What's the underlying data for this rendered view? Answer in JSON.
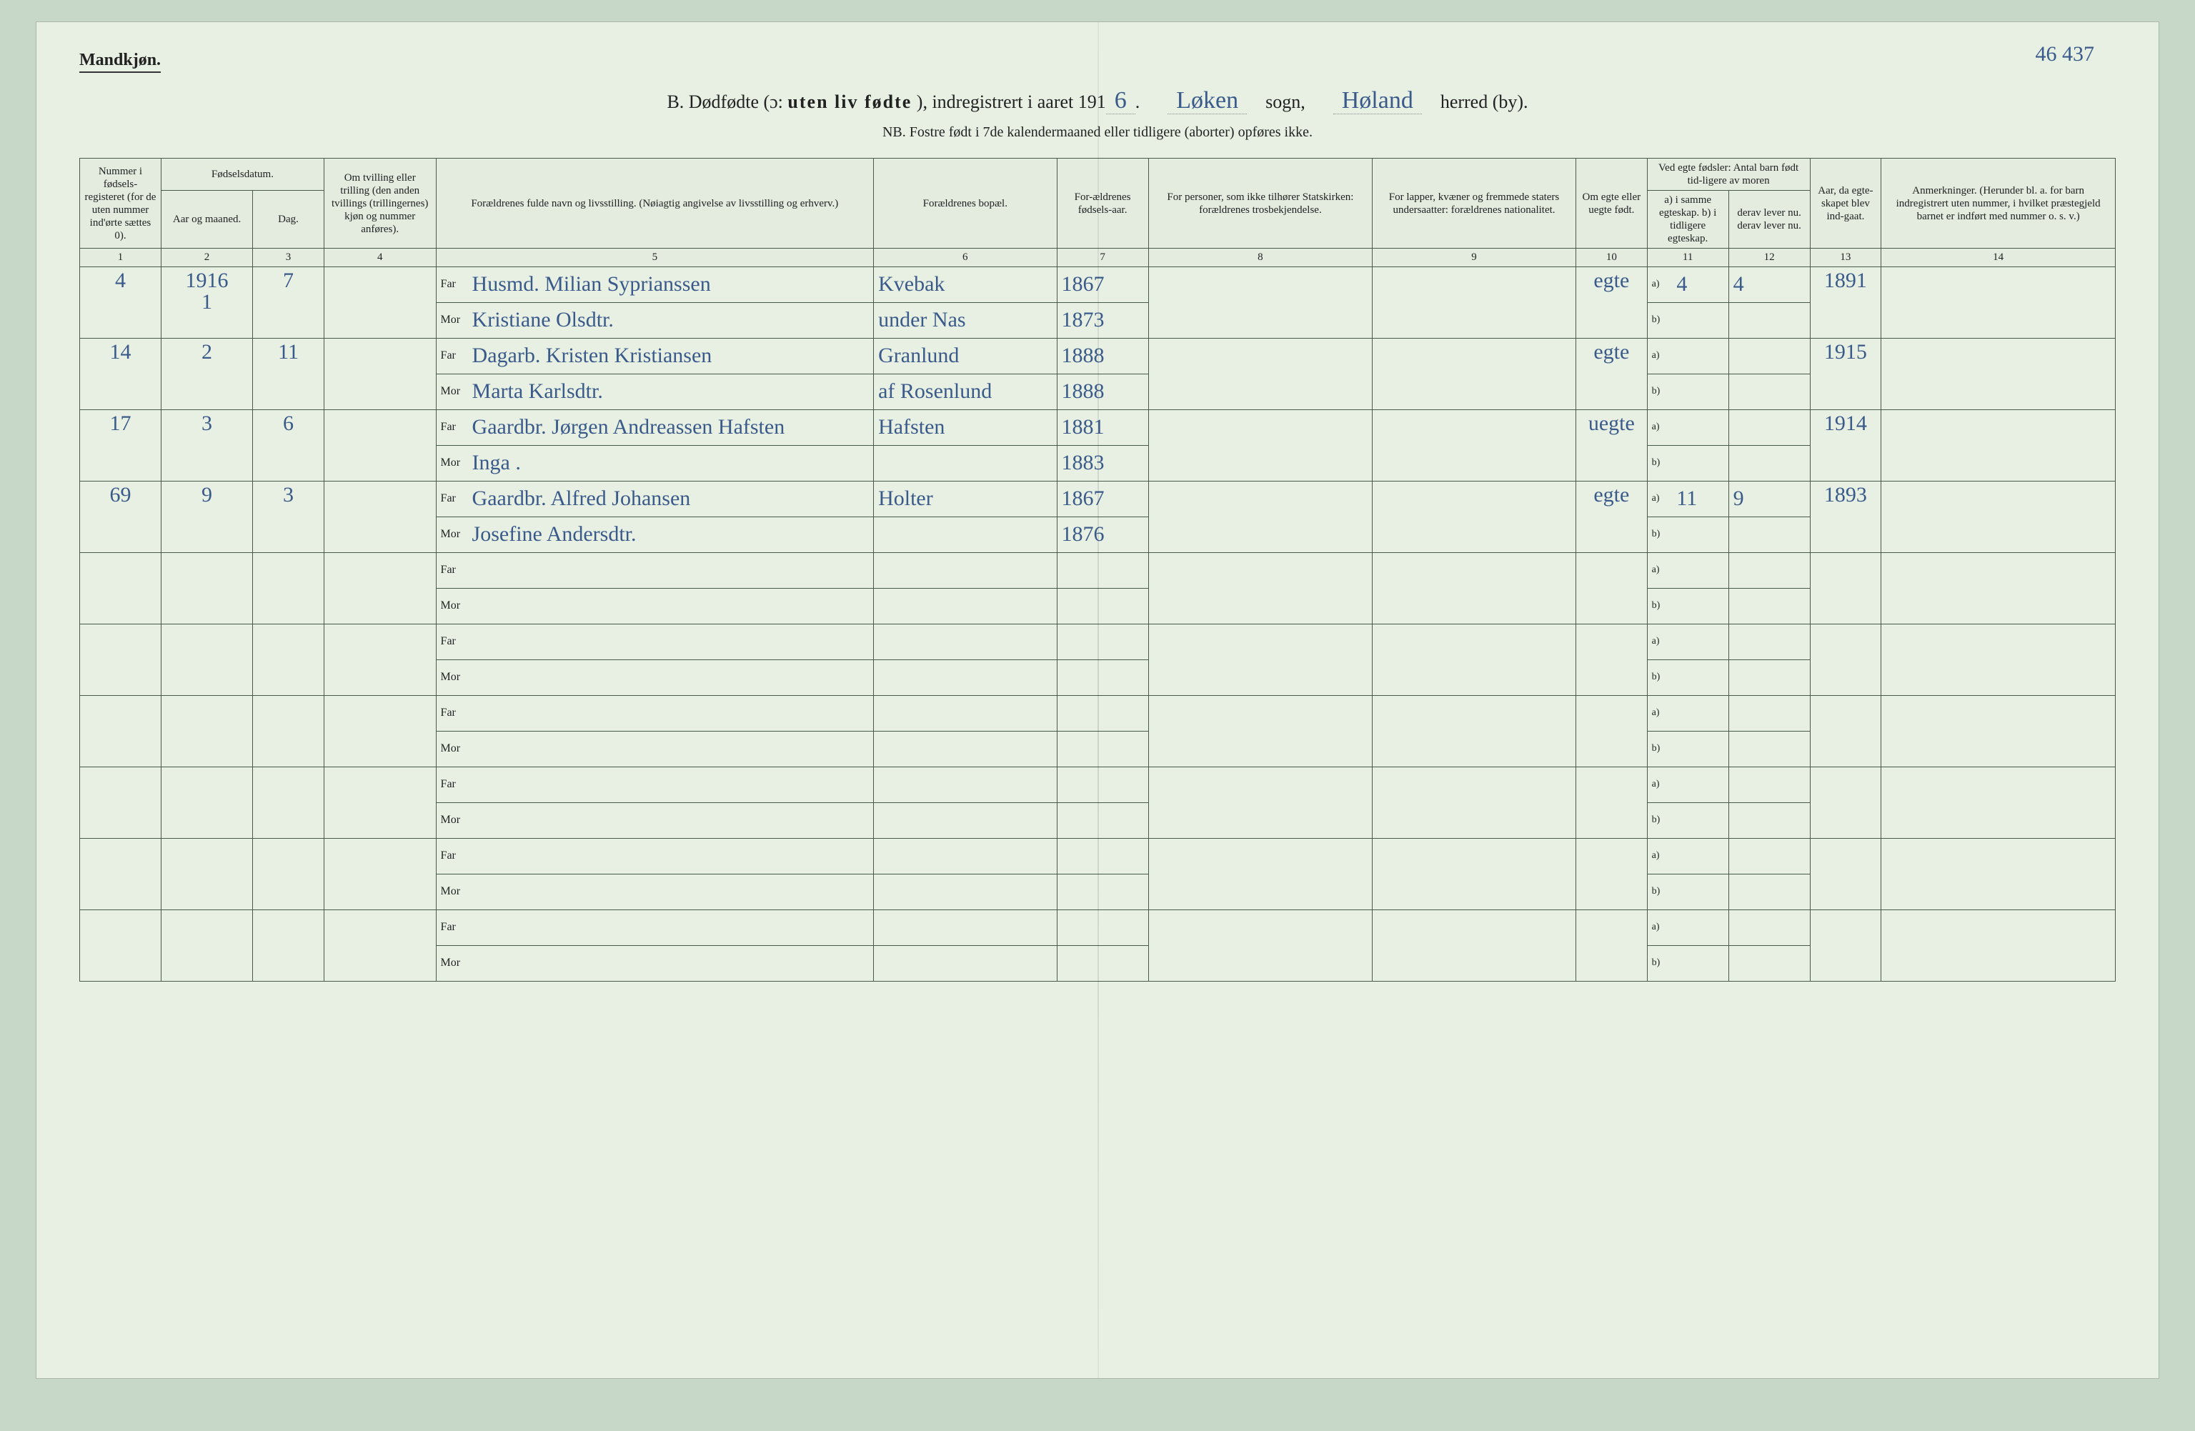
{
  "corner_note": "46 437",
  "gender_label": "Mandkjøn.",
  "title": {
    "prefix": "B.  Dødfødte (ɔ:  ",
    "bold_part": "uten liv fødte",
    "after_bold": "),  indregistrert i aaret 191",
    "year_suffix": "6",
    "sogn_fill": "Løken",
    "sogn_label": "sogn,",
    "herred_fill": "Høland",
    "herred_label": "herred (by)."
  },
  "nb_line": "NB.  Fostre født i 7de kalendermaaned eller tidligere (aborter) opføres ikke.",
  "headers": {
    "c1": "Nummer i fødsels-registeret (for de uten nummer ind'ørte sættes 0).",
    "c2_group": "Fødselsdatum.",
    "c2": "Aar og maaned.",
    "c3": "Dag.",
    "c4": "Om tvilling eller trilling (den anden tvillings (trillingernes) kjøn og nummer anføres).",
    "c5": "Forældrenes fulde navn og livsstilling.\n(Nøiagtig angivelse av livsstilling og erhverv.)",
    "c6": "Forældrenes bopæl.",
    "c7": "For-ældrenes fødsels-aar.",
    "c8": "For personer, som ikke tilhører Statskirken:\nforældrenes trosbekjendelse.",
    "c9": "For lapper, kvæner og fremmede staters undersaatter:\nforældrenes nationalitet.",
    "c10": "Om egte eller uegte født.",
    "c11_12_group": "Ved egte fødsler:\nAntal barn født tid-ligere av moren",
    "c11": "a) i samme egteskap.\nb) i tidligere egteskap.",
    "c12": "derav lever nu.\nderav lever nu.",
    "c13": "Aar, da egte-skapet blev ind-gaat.",
    "c14": "Anmerkninger.\n(Herunder bl. a. for barn indregistrert uten nummer, i hvilket præstegjeld barnet er indført med nummer o. s. v.)"
  },
  "colnums": [
    "1",
    "2",
    "3",
    "4",
    "5",
    "6",
    "7",
    "8",
    "9",
    "10",
    "11",
    "12",
    "13",
    "14"
  ],
  "far_label": "Far",
  "mor_label": "Mor",
  "ab_a": "a)",
  "ab_b": "b)",
  "rows": [
    {
      "num": "4",
      "year_month": "1916\n1",
      "day": "7",
      "twin": "",
      "far": "Husmd. Milian Syprianssen",
      "mor": "Kristiane Olsdtr.",
      "bopel_far": "Kvebak",
      "bopel_mor": "under Nas",
      "faar_far": "1867",
      "faar_mor": "1873",
      "c8": "",
      "c9": "",
      "egte": "egte",
      "a_val": "4",
      "a_lever": "4",
      "b_val": "",
      "b_lever": "",
      "aar_egte": "1891",
      "anm": ""
    },
    {
      "num": "14",
      "year_month": "2",
      "day": "11",
      "twin": "",
      "far": "Dagarb. Kristen Kristiansen",
      "mor": "Marta Karlsdtr.",
      "bopel_far": "Granlund",
      "bopel_mor": "af Rosenlund",
      "faar_far": "1888",
      "faar_mor": "1888",
      "c8": "",
      "c9": "",
      "egte": "egte",
      "a_val": "",
      "a_lever": "",
      "b_val": "",
      "b_lever": "",
      "aar_egte": "1915",
      "anm": ""
    },
    {
      "num": "17",
      "year_month": "3",
      "day": "6",
      "twin": "",
      "far": "Gaardbr. Jørgen Andreassen Hafsten",
      "mor": "Inga .",
      "bopel_far": "Hafsten",
      "bopel_mor": "",
      "faar_far": "1881",
      "faar_mor": "1883",
      "c8": "",
      "c9": "",
      "egte": "uegte",
      "a_val": "",
      "a_lever": "",
      "b_val": "",
      "b_lever": "",
      "aar_egte": "1914",
      "anm": ""
    },
    {
      "num": "69",
      "year_month": "9",
      "day": "3",
      "twin": "",
      "far": "Gaardbr. Alfred Johansen",
      "mor": "Josefine Andersdtr.",
      "bopel_far": "Holter",
      "bopel_mor": "",
      "faar_far": "1867",
      "faar_mor": "1876",
      "c8": "",
      "c9": "",
      "egte": "egte",
      "a_val": "11",
      "a_lever": "9",
      "b_val": "",
      "b_lever": "",
      "aar_egte": "1893",
      "anm": ""
    },
    {
      "num": "",
      "year_month": "",
      "day": "",
      "twin": "",
      "far": "",
      "mor": "",
      "bopel_far": "",
      "bopel_mor": "",
      "faar_far": "",
      "faar_mor": "",
      "c8": "",
      "c9": "",
      "egte": "",
      "a_val": "",
      "a_lever": "",
      "b_val": "",
      "b_lever": "",
      "aar_egte": "",
      "anm": ""
    },
    {
      "num": "",
      "year_month": "",
      "day": "",
      "twin": "",
      "far": "",
      "mor": "",
      "bopel_far": "",
      "bopel_mor": "",
      "faar_far": "",
      "faar_mor": "",
      "c8": "",
      "c9": "",
      "egte": "",
      "a_val": "",
      "a_lever": "",
      "b_val": "",
      "b_lever": "",
      "aar_egte": "",
      "anm": ""
    },
    {
      "num": "",
      "year_month": "",
      "day": "",
      "twin": "",
      "far": "",
      "mor": "",
      "bopel_far": "",
      "bopel_mor": "",
      "faar_far": "",
      "faar_mor": "",
      "c8": "",
      "c9": "",
      "egte": "",
      "a_val": "",
      "a_lever": "",
      "b_val": "",
      "b_lever": "",
      "aar_egte": "",
      "anm": ""
    },
    {
      "num": "",
      "year_month": "",
      "day": "",
      "twin": "",
      "far": "",
      "mor": "",
      "bopel_far": "",
      "bopel_mor": "",
      "faar_far": "",
      "faar_mor": "",
      "c8": "",
      "c9": "",
      "egte": "",
      "a_val": "",
      "a_lever": "",
      "b_val": "",
      "b_lever": "",
      "aar_egte": "",
      "anm": ""
    },
    {
      "num": "",
      "year_month": "",
      "day": "",
      "twin": "",
      "far": "",
      "mor": "",
      "bopel_far": "",
      "bopel_mor": "",
      "faar_far": "",
      "faar_mor": "",
      "c8": "",
      "c9": "",
      "egte": "",
      "a_val": "",
      "a_lever": "",
      "b_val": "",
      "b_lever": "",
      "aar_egte": "",
      "anm": ""
    },
    {
      "num": "",
      "year_month": "",
      "day": "",
      "twin": "",
      "far": "",
      "mor": "",
      "bopel_far": "",
      "bopel_mor": "",
      "faar_far": "",
      "faar_mor": "",
      "c8": "",
      "c9": "",
      "egte": "",
      "a_val": "",
      "a_lever": "",
      "b_val": "",
      "b_lever": "",
      "aar_egte": "",
      "anm": ""
    }
  ],
  "col_widths_pct": [
    4.0,
    4.5,
    3.5,
    5.5,
    21.5,
    9.0,
    4.5,
    11.0,
    10.0,
    3.5,
    4.0,
    4.0,
    3.5,
    11.5
  ],
  "colors": {
    "page_bg": "#e8f0e4",
    "outer_bg": "#c8d8c8",
    "rule": "#4a5a4a",
    "ink": "#222222",
    "hand": "#3a5a8a"
  }
}
